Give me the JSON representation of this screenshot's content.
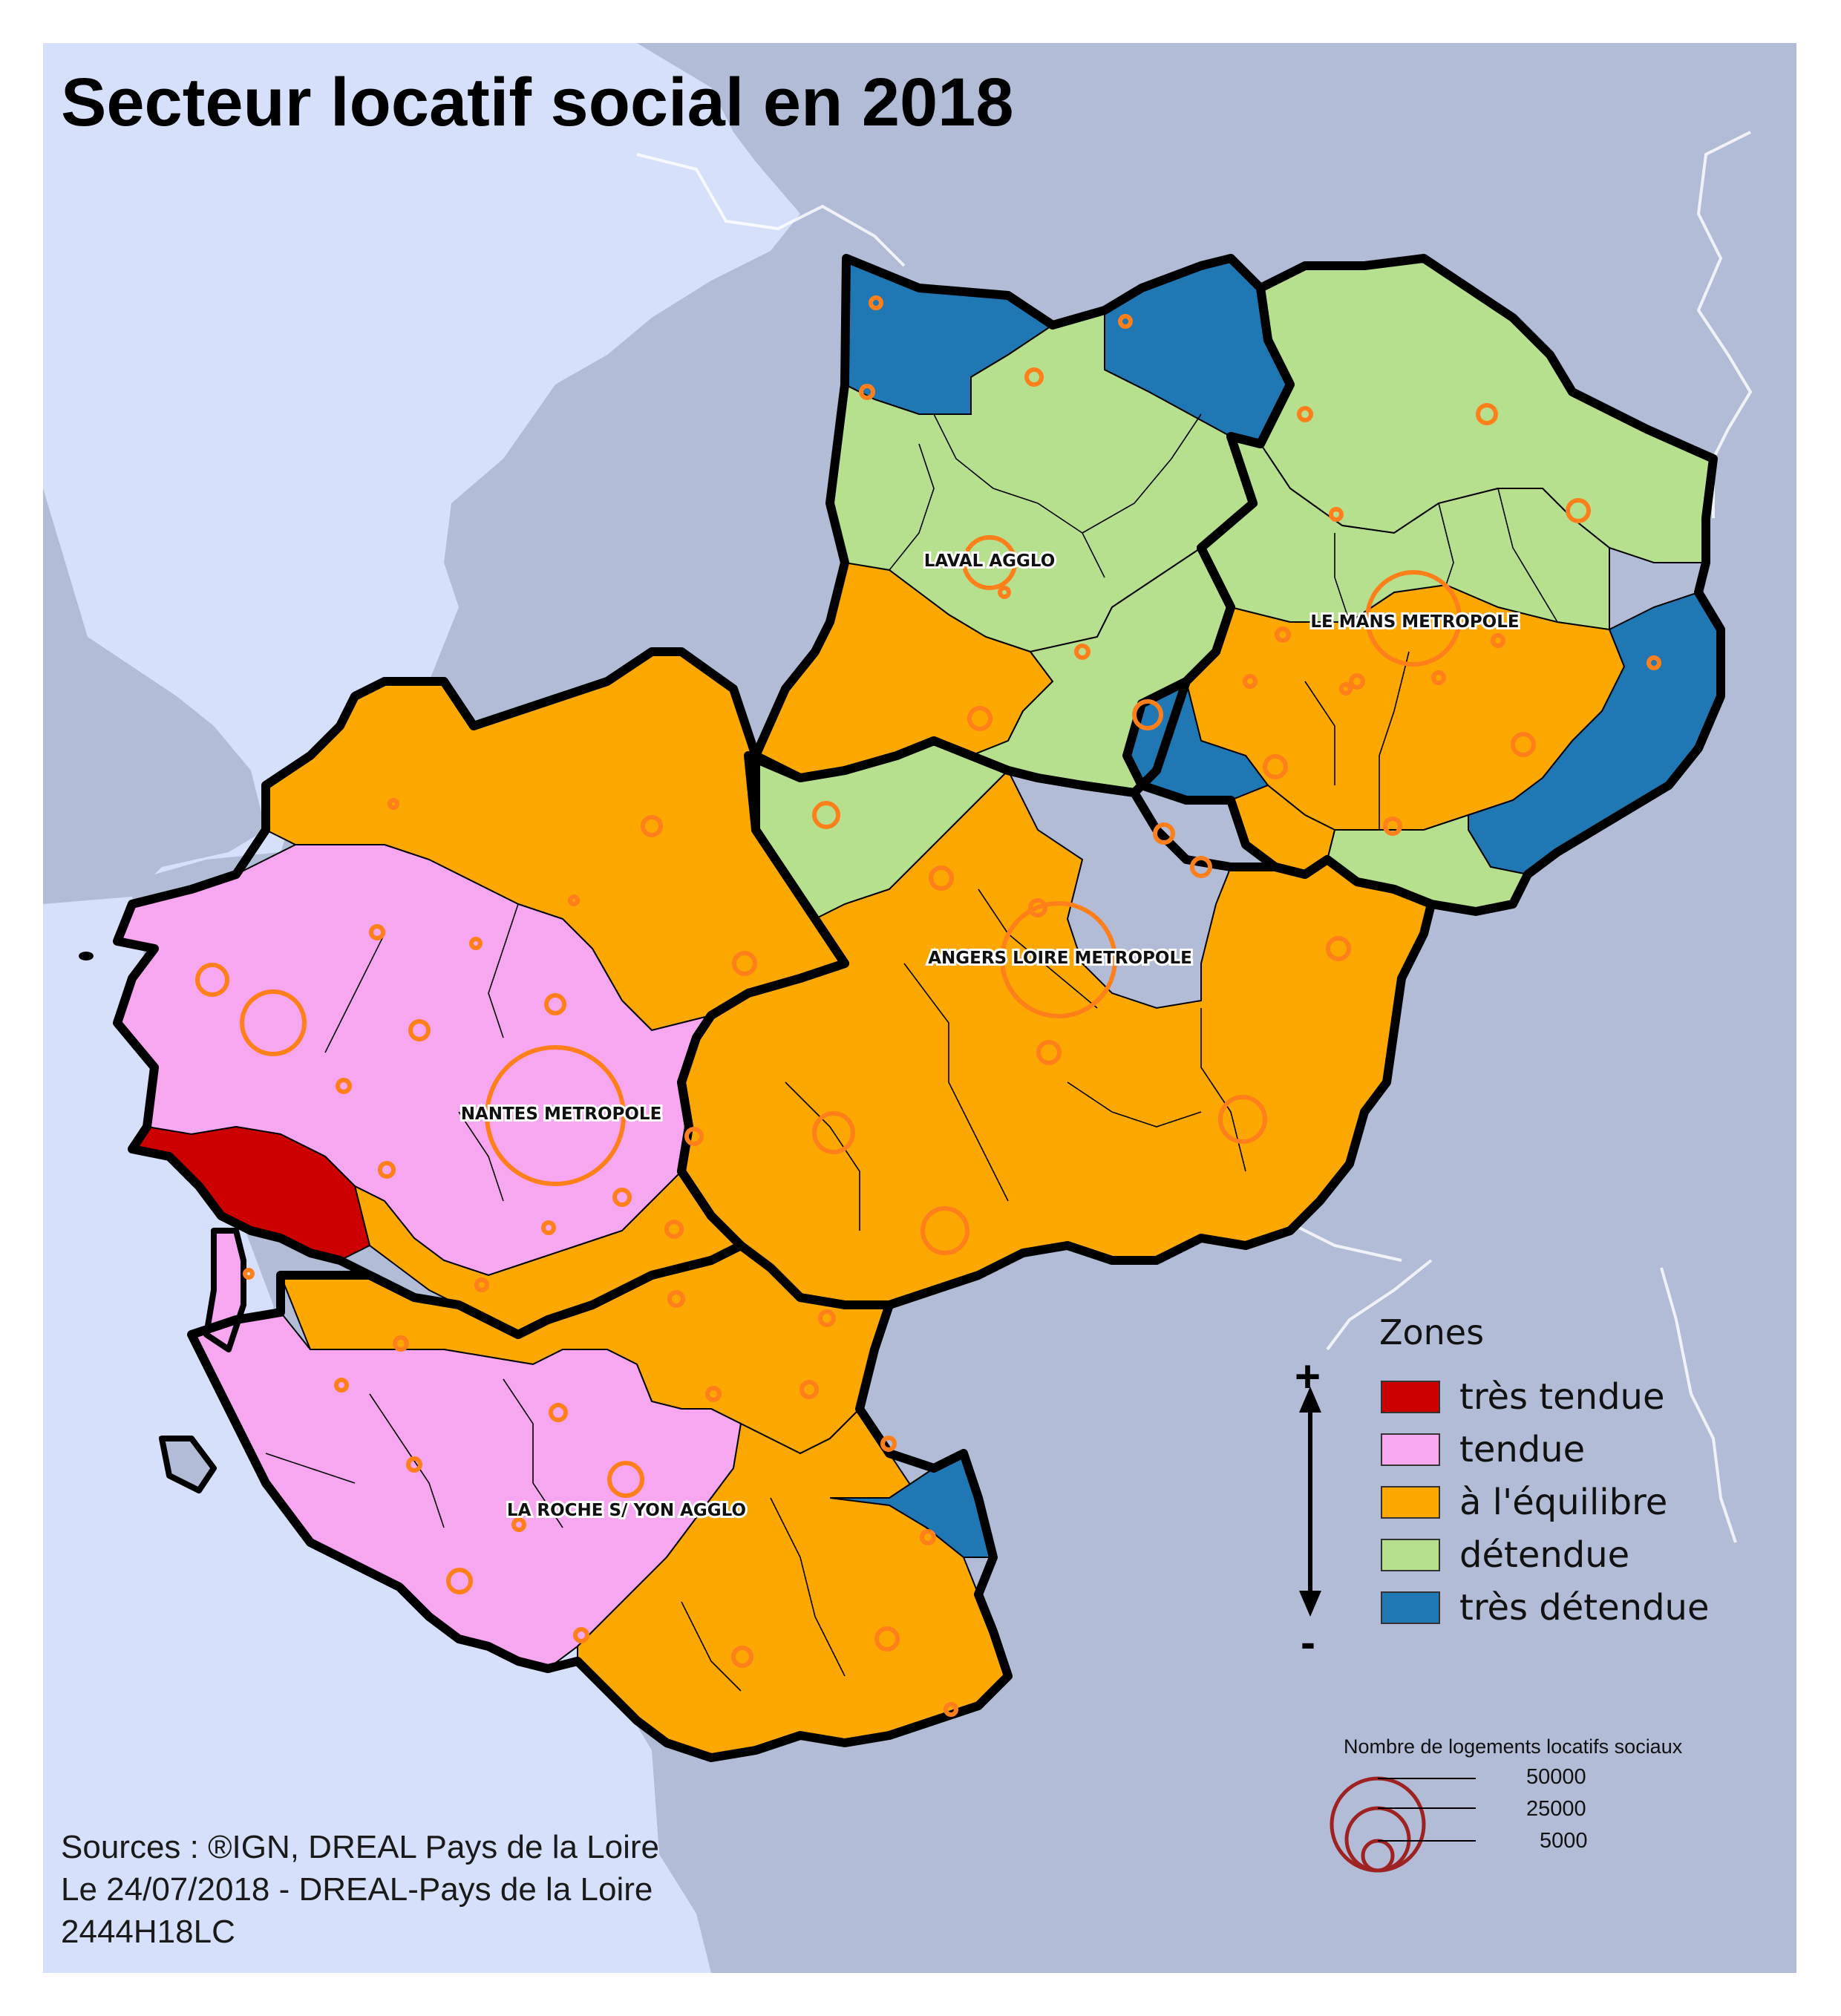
{
  "title": "Secteur locatif social en 2018",
  "sources": {
    "line1": "Sources : ®IGN, DREAL Pays de la Loire",
    "line2": "Le 24/07/2018 - DREAL-Pays de la Loire",
    "line3": "2444H18LC"
  },
  "colors": {
    "sea": "#d6e0fa",
    "land_outside": "#b2bcd6",
    "boundary": "#000000",
    "circle": "#ff7f1a",
    "proportional_legend": "#9e2222"
  },
  "legend": {
    "title": "Zones",
    "scale_top": "+",
    "scale_bottom": "-",
    "items": [
      {
        "label": "très tendue",
        "color": "#cc0000"
      },
      {
        "label": "tendue",
        "color": "#f7a7f0"
      },
      {
        "label": "à l'équilibre",
        "color": "#fca800"
      },
      {
        "label": "détendue",
        "color": "#b7e08e"
      },
      {
        "label": "très détendue",
        "color": "#1f77b4"
      }
    ]
  },
  "proportional_legend": {
    "title": "Nombre de logements locatifs sociaux",
    "values": [
      "50000",
      "25000",
      "5000"
    ]
  },
  "agglomerations": [
    "LAVAL AGGLO",
    "LE MANS METROPOLE",
    "ANGERS LOIRE METROPOLE",
    "NANTES METROPOLE",
    "LA ROCHE S/ YON AGGLO"
  ]
}
